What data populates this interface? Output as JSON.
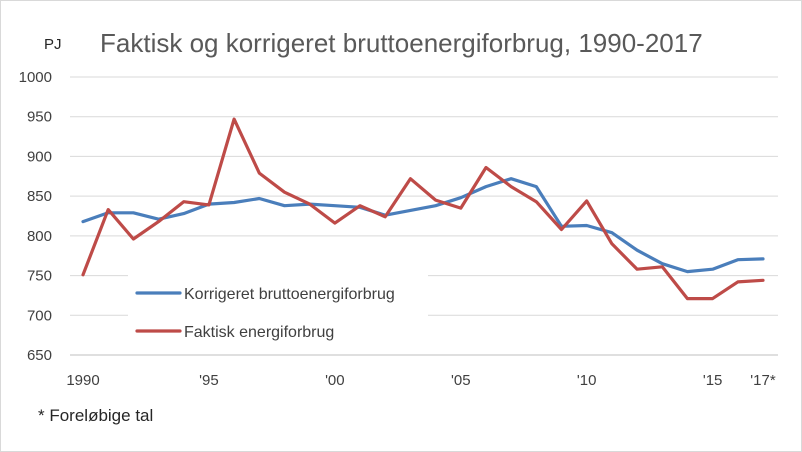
{
  "chart_data": {
    "type": "line",
    "title": "Faktisk og korrigeret bruttoenergiforbrug, 1990-2017",
    "unit_label": "PJ",
    "ylim": [
      650,
      1000
    ],
    "yticks": [
      650,
      700,
      750,
      800,
      850,
      900,
      950,
      1000
    ],
    "x": [
      1990,
      1991,
      1992,
      1993,
      1994,
      1995,
      1996,
      1997,
      1998,
      1999,
      2000,
      2001,
      2002,
      2003,
      2004,
      2005,
      2006,
      2007,
      2008,
      2009,
      2010,
      2011,
      2012,
      2013,
      2014,
      2015,
      2016,
      2017
    ],
    "xticks": [
      {
        "year": 1990,
        "label": "1990"
      },
      {
        "year": 1995,
        "label": "'95"
      },
      {
        "year": 2000,
        "label": "'00"
      },
      {
        "year": 2005,
        "label": "'05"
      },
      {
        "year": 2010,
        "label": "'10"
      },
      {
        "year": 2015,
        "label": "'15"
      },
      {
        "year": 2017,
        "label": "'17*"
      }
    ],
    "grid": "horizontal",
    "legend_position": "lower-left",
    "series": [
      {
        "name": "Korrigeret bruttoenergiforbrug",
        "color": "#4a7ebb",
        "values": [
          818,
          829,
          829,
          821,
          828,
          840,
          842,
          847,
          838,
          840,
          838,
          836,
          826,
          832,
          838,
          848,
          862,
          872,
          862,
          812,
          813,
          804,
          782,
          765,
          755,
          758,
          770,
          771
        ]
      },
      {
        "name": "Faktisk energiforbrug",
        "color": "#be4b48",
        "values": [
          751,
          833,
          796,
          818,
          843,
          839,
          947,
          879,
          855,
          840,
          816,
          838,
          824,
          872,
          845,
          835,
          886,
          862,
          843,
          808,
          844,
          790,
          758,
          761,
          721,
          721,
          742,
          744
        ]
      }
    ]
  },
  "footnote": "* Foreløbige tal"
}
